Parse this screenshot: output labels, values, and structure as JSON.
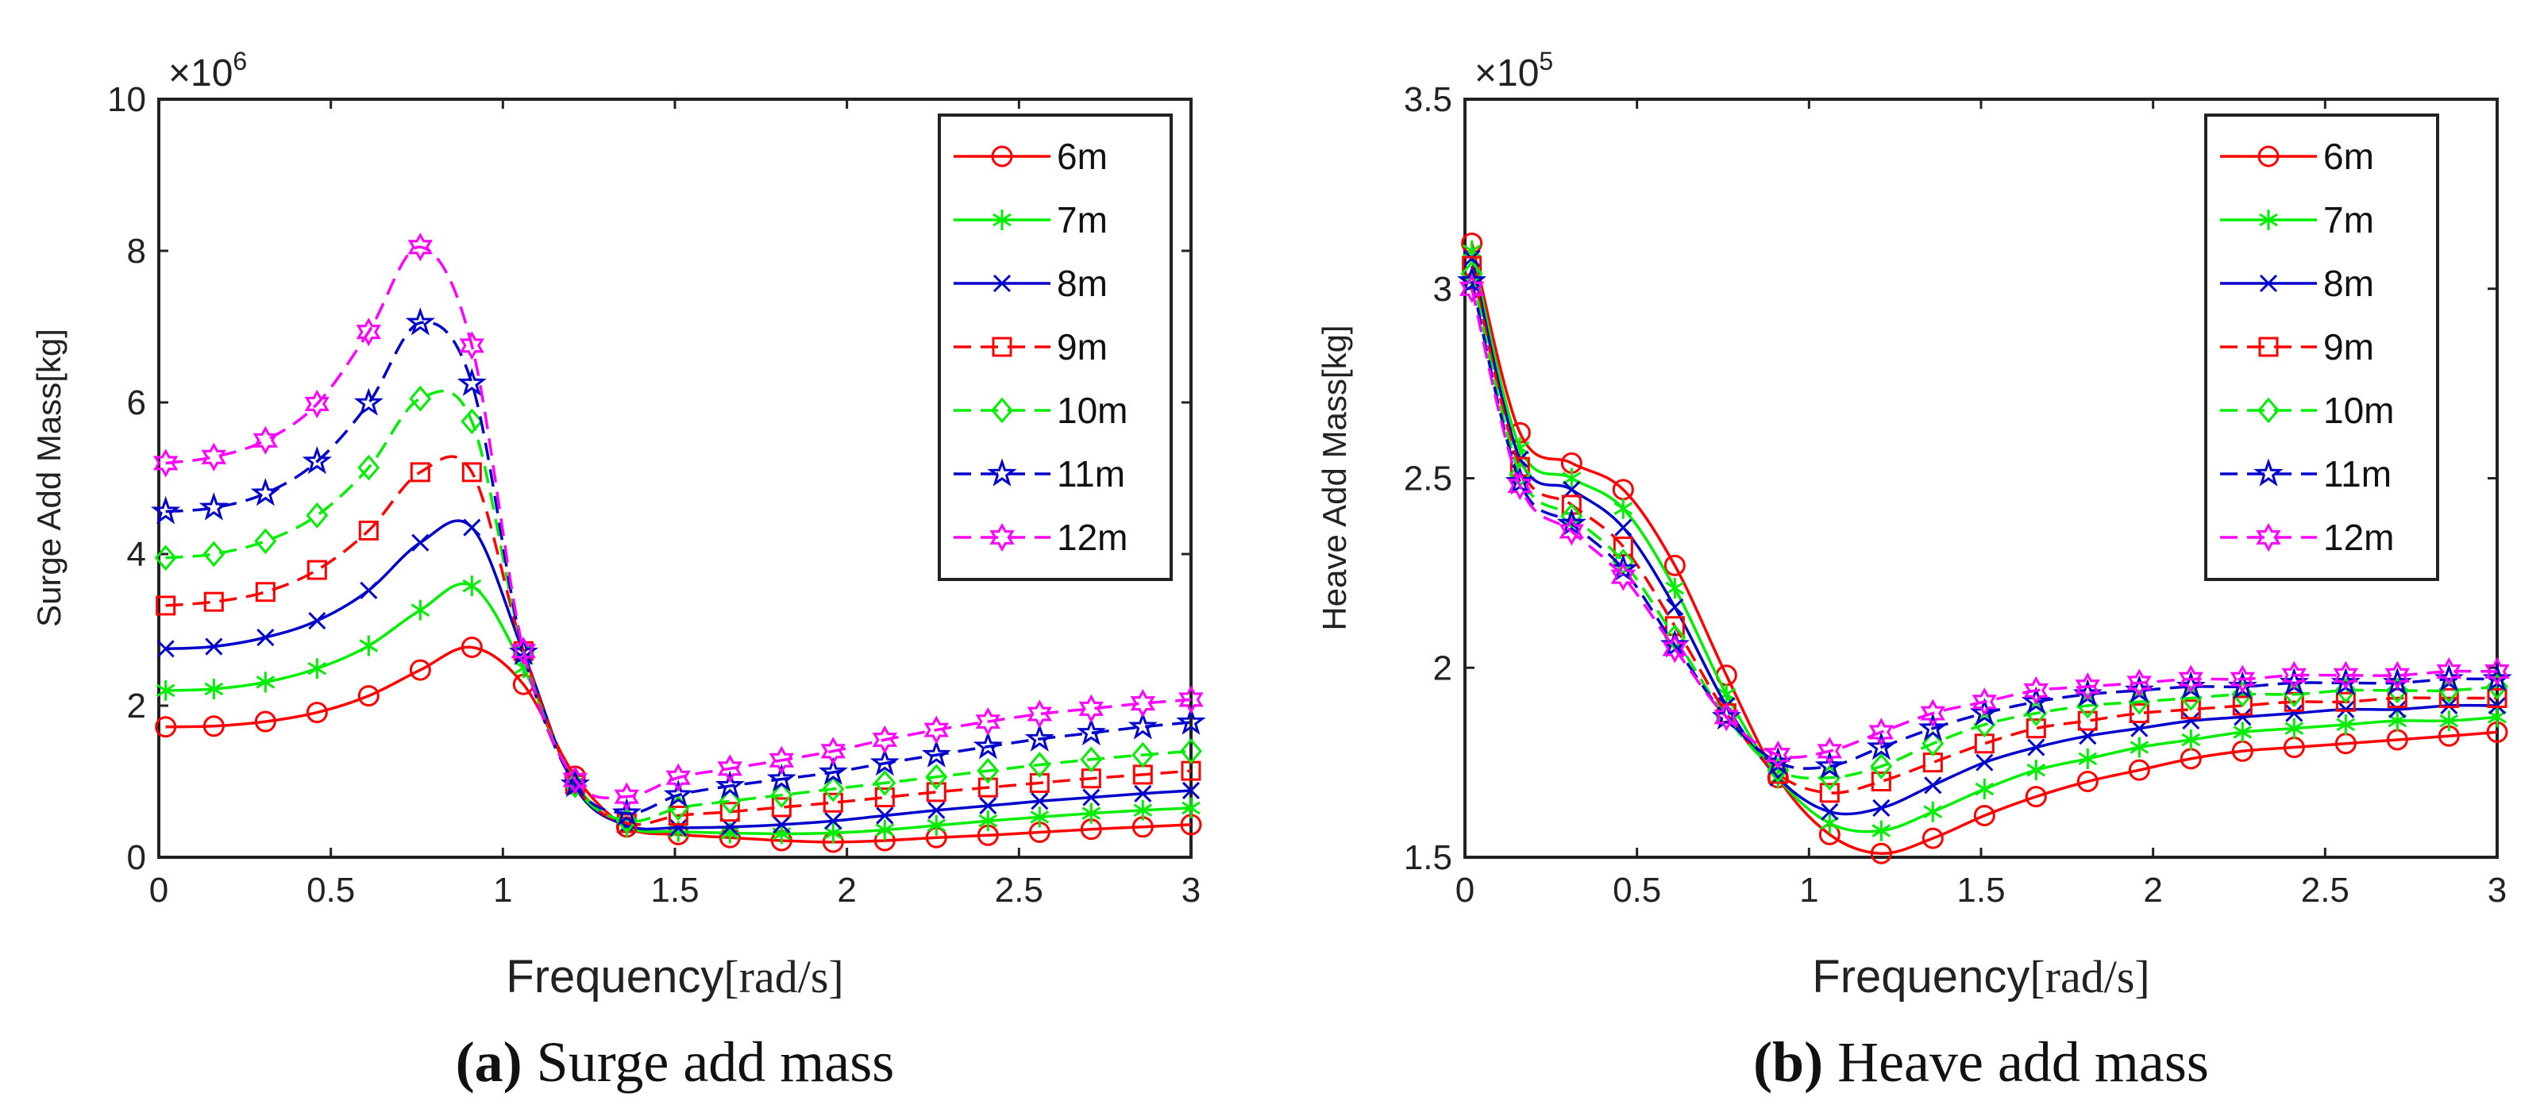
{
  "legend_order": [
    "6m",
    "7m",
    "8m",
    "9m",
    "10m",
    "11m",
    "12m"
  ],
  "chart_data": [
    {
      "type": "line",
      "ylabel": "Surge Add Mass[kg]",
      "xlabel": "Frequency",
      "xlabel_unit": "[rad/s]",
      "multiplier": "×10",
      "exponent": "6",
      "caption_letter": "(a)",
      "caption_text": " Surge add mass",
      "xlim": [
        0,
        3
      ],
      "ylim": [
        0,
        10
      ],
      "xticks": [
        0,
        0.5,
        1,
        1.5,
        2,
        2.5,
        3
      ],
      "xtick_labels": [
        "0",
        "0.5",
        "1",
        "1.5",
        "2",
        "2.5",
        "3"
      ],
      "yticks": [
        0,
        2,
        4,
        6,
        8,
        10
      ],
      "ytick_labels": [
        "0",
        "2",
        "4",
        "6",
        "8",
        "10"
      ],
      "x": [
        0.02,
        0.16,
        0.31,
        0.46,
        0.61,
        0.76,
        0.91,
        1.06,
        1.21,
        1.36,
        1.51,
        1.66,
        1.81,
        1.96,
        2.11,
        2.26,
        2.41,
        2.56,
        2.71,
        2.86,
        3.0
      ],
      "series": [
        {
          "name": "6m",
          "color": "#ff0000",
          "dash": "solid",
          "marker": "circle",
          "values": [
            1.72,
            1.73,
            1.79,
            1.91,
            2.13,
            2.47,
            2.77,
            2.28,
            1.07,
            0.4,
            0.3,
            0.26,
            0.22,
            0.2,
            0.22,
            0.26,
            0.29,
            0.33,
            0.37,
            0.4,
            0.43
          ]
        },
        {
          "name": "7m",
          "color": "#00ee00",
          "dash": "solid",
          "marker": "asterisk",
          "values": [
            2.2,
            2.22,
            2.31,
            2.49,
            2.79,
            3.26,
            3.58,
            2.5,
            0.98,
            0.4,
            0.34,
            0.32,
            0.31,
            0.32,
            0.36,
            0.42,
            0.48,
            0.53,
            0.58,
            0.62,
            0.65
          ]
        },
        {
          "name": "8m",
          "color": "#0000cc",
          "dash": "solid",
          "marker": "x",
          "values": [
            2.75,
            2.78,
            2.9,
            3.12,
            3.52,
            4.15,
            4.35,
            2.7,
            0.93,
            0.42,
            0.39,
            0.4,
            0.43,
            0.48,
            0.55,
            0.62,
            0.68,
            0.74,
            0.79,
            0.84,
            0.88
          ]
        },
        {
          "name": "9m",
          "color": "#ff0000",
          "dash": "dashed",
          "marker": "square",
          "values": [
            3.32,
            3.37,
            3.5,
            3.79,
            4.31,
            5.08,
            5.08,
            2.72,
            0.96,
            0.45,
            0.55,
            0.6,
            0.66,
            0.72,
            0.79,
            0.86,
            0.92,
            0.98,
            1.04,
            1.09,
            1.14
          ]
        },
        {
          "name": "10m",
          "color": "#00ee00",
          "dash": "dashed",
          "marker": "diamond",
          "values": [
            3.95,
            4.0,
            4.17,
            4.51,
            5.14,
            6.05,
            5.75,
            2.7,
            0.95,
            0.48,
            0.65,
            0.74,
            0.82,
            0.9,
            0.98,
            1.06,
            1.14,
            1.22,
            1.29,
            1.35,
            1.4
          ]
        },
        {
          "name": "11m",
          "color": "#0000cc",
          "dash": "dashed",
          "marker": "pentagram",
          "values": [
            4.56,
            4.61,
            4.8,
            5.22,
            5.99,
            7.05,
            6.25,
            2.7,
            0.96,
            0.58,
            0.82,
            0.94,
            1.03,
            1.12,
            1.24,
            1.35,
            1.46,
            1.56,
            1.64,
            1.72,
            1.78
          ]
        },
        {
          "name": "12m",
          "color": "#ff00ff",
          "dash": "dashed",
          "marker": "hexagram",
          "values": [
            5.2,
            5.28,
            5.5,
            5.98,
            6.93,
            8.05,
            6.75,
            2.72,
            1.02,
            0.8,
            1.05,
            1.17,
            1.28,
            1.4,
            1.55,
            1.68,
            1.79,
            1.89,
            1.96,
            2.03,
            2.08
          ]
        }
      ]
    },
    {
      "type": "line",
      "ylabel": "Heave Add Mass[kg]",
      "xlabel": "Frequency",
      "xlabel_unit": "[rad/s]",
      "multiplier": "×10",
      "exponent": "5",
      "caption_letter": "(b)",
      "caption_text": " Heave add mass",
      "xlim": [
        0,
        3
      ],
      "ylim": [
        1.5,
        3.5
      ],
      "xticks": [
        0,
        0.5,
        1,
        1.5,
        2,
        2.5,
        3
      ],
      "xtick_labels": [
        "0",
        "0.5",
        "1",
        "1.5",
        "2",
        "2.5",
        "3"
      ],
      "yticks": [
        1.5,
        2,
        2.5,
        3,
        3.5
      ],
      "ytick_labels": [
        "1.5",
        "2",
        "2.5",
        "3",
        "3.5"
      ],
      "x": [
        0.02,
        0.16,
        0.31,
        0.46,
        0.61,
        0.76,
        0.91,
        1.06,
        1.21,
        1.36,
        1.51,
        1.66,
        1.81,
        1.96,
        2.11,
        2.26,
        2.41,
        2.56,
        2.71,
        2.86,
        3.0
      ],
      "series": [
        {
          "name": "6m",
          "color": "#ff0000",
          "dash": "solid",
          "marker": "circle",
          "values": [
            3.12,
            2.62,
            2.54,
            2.47,
            2.27,
            1.98,
            1.71,
            1.56,
            1.51,
            1.55,
            1.61,
            1.66,
            1.7,
            1.73,
            1.76,
            1.78,
            1.79,
            1.8,
            1.81,
            1.82,
            1.83
          ]
        },
        {
          "name": "7m",
          "color": "#00ee00",
          "dash": "solid",
          "marker": "asterisk",
          "values": [
            3.1,
            2.58,
            2.5,
            2.42,
            2.21,
            1.93,
            1.71,
            1.59,
            1.57,
            1.62,
            1.68,
            1.73,
            1.76,
            1.79,
            1.81,
            1.83,
            1.84,
            1.85,
            1.86,
            1.86,
            1.87
          ]
        },
        {
          "name": "8m",
          "color": "#0000cc",
          "dash": "solid",
          "marker": "x",
          "values": [
            3.08,
            2.55,
            2.47,
            2.37,
            2.16,
            1.9,
            1.71,
            1.62,
            1.63,
            1.69,
            1.75,
            1.79,
            1.82,
            1.84,
            1.86,
            1.87,
            1.88,
            1.89,
            1.89,
            1.9,
            1.9
          ]
        },
        {
          "name": "9m",
          "color": "#ff0000",
          "dash": "dashed",
          "marker": "square",
          "values": [
            3.06,
            2.53,
            2.43,
            2.32,
            2.11,
            1.88,
            1.72,
            1.67,
            1.7,
            1.75,
            1.8,
            1.84,
            1.86,
            1.88,
            1.89,
            1.9,
            1.91,
            1.91,
            1.92,
            1.92,
            1.92
          ]
        },
        {
          "name": "10m",
          "color": "#00ee00",
          "dash": "dashed",
          "marker": "diamond",
          "values": [
            3.04,
            2.51,
            2.4,
            2.28,
            2.08,
            1.87,
            1.73,
            1.71,
            1.74,
            1.8,
            1.85,
            1.88,
            1.9,
            1.91,
            1.92,
            1.93,
            1.93,
            1.94,
            1.94,
            1.94,
            1.95
          ]
        },
        {
          "name": "11m",
          "color": "#0000cc",
          "dash": "dashed",
          "marker": "pentagram",
          "values": [
            3.02,
            2.49,
            2.38,
            2.26,
            2.06,
            1.87,
            1.75,
            1.74,
            1.79,
            1.84,
            1.88,
            1.91,
            1.93,
            1.94,
            1.95,
            1.95,
            1.96,
            1.96,
            1.96,
            1.97,
            1.97
          ]
        },
        {
          "name": "12m",
          "color": "#ff00ff",
          "dash": "dashed",
          "marker": "hexagram",
          "values": [
            3.0,
            2.48,
            2.36,
            2.24,
            2.05,
            1.87,
            1.77,
            1.78,
            1.83,
            1.88,
            1.91,
            1.94,
            1.95,
            1.96,
            1.97,
            1.97,
            1.98,
            1.98,
            1.98,
            1.99,
            1.99
          ]
        }
      ]
    }
  ]
}
